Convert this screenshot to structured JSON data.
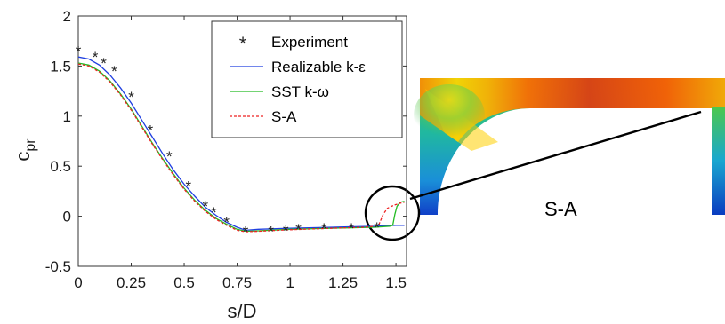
{
  "chart_data": {
    "type": "line",
    "title": "",
    "xlabel": "s/D",
    "ylabel": {
      "main": "c",
      "sub": "pr"
    },
    "xlim": [
      0,
      1.55
    ],
    "ylim": [
      -0.5,
      2
    ],
    "xticks": [
      {
        "v": 0,
        "label": "0"
      },
      {
        "v": 0.25,
        "label": "0.25"
      },
      {
        "v": 0.5,
        "label": "0.5"
      },
      {
        "v": 0.75,
        "label": "0.75"
      },
      {
        "v": 1,
        "label": "1"
      },
      {
        "v": 1.25,
        "label": "1.25"
      },
      {
        "v": 1.5,
        "label": "1.5"
      }
    ],
    "yticks": [
      {
        "v": -0.5,
        "label": "-0.5"
      },
      {
        "v": 0,
        "label": "0"
      },
      {
        "v": 0.5,
        "label": "0.5"
      },
      {
        "v": 1,
        "label": "1"
      },
      {
        "v": 1.5,
        "label": "1.5"
      },
      {
        "v": 2,
        "label": "2"
      }
    ],
    "grid": false,
    "legend_position": "top-right",
    "experiment": {
      "name": "Experiment",
      "marker": "*",
      "color": "#222222",
      "points": [
        [
          0.0,
          1.66
        ],
        [
          0.08,
          1.6
        ],
        [
          0.12,
          1.54
        ],
        [
          0.17,
          1.46
        ],
        [
          0.25,
          1.2
        ],
        [
          0.34,
          0.87
        ],
        [
          0.43,
          0.61
        ],
        [
          0.52,
          0.31
        ],
        [
          0.6,
          0.11
        ],
        [
          0.64,
          0.05
        ],
        [
          0.7,
          -0.05
        ],
        [
          0.79,
          -0.14
        ],
        [
          0.91,
          -0.14
        ],
        [
          0.98,
          -0.13
        ],
        [
          1.04,
          -0.12
        ],
        [
          1.16,
          -0.11
        ],
        [
          1.29,
          -0.11
        ],
        [
          1.41,
          -0.1
        ]
      ]
    },
    "series": [
      {
        "name": "Realizable k-ε",
        "color": "#1f3fe0",
        "style": "solid",
        "points": [
          [
            0,
            1.59
          ],
          [
            0.05,
            1.57
          ],
          [
            0.1,
            1.51
          ],
          [
            0.15,
            1.41
          ],
          [
            0.2,
            1.28
          ],
          [
            0.25,
            1.13
          ],
          [
            0.3,
            0.96
          ],
          [
            0.35,
            0.79
          ],
          [
            0.4,
            0.62
          ],
          [
            0.45,
            0.46
          ],
          [
            0.5,
            0.32
          ],
          [
            0.55,
            0.2
          ],
          [
            0.6,
            0.09
          ],
          [
            0.65,
            0.01
          ],
          [
            0.7,
            -0.06
          ],
          [
            0.75,
            -0.11
          ],
          [
            0.79,
            -0.14
          ],
          [
            0.85,
            -0.13
          ],
          [
            1.0,
            -0.12
          ],
          [
            1.2,
            -0.11
          ],
          [
            1.4,
            -0.1
          ],
          [
            1.5,
            -0.09
          ],
          [
            1.54,
            -0.09
          ]
        ]
      },
      {
        "name": "SST k-ω",
        "color": "#22bb22",
        "style": "solid",
        "points": [
          [
            0,
            1.53
          ],
          [
            0.05,
            1.51
          ],
          [
            0.1,
            1.45
          ],
          [
            0.15,
            1.35
          ],
          [
            0.2,
            1.22
          ],
          [
            0.25,
            1.07
          ],
          [
            0.3,
            0.9
          ],
          [
            0.35,
            0.73
          ],
          [
            0.4,
            0.57
          ],
          [
            0.45,
            0.42
          ],
          [
            0.5,
            0.28
          ],
          [
            0.55,
            0.16
          ],
          [
            0.6,
            0.06
          ],
          [
            0.65,
            -0.02
          ],
          [
            0.7,
            -0.08
          ],
          [
            0.75,
            -0.13
          ],
          [
            0.79,
            -0.15
          ],
          [
            0.85,
            -0.145
          ],
          [
            1.0,
            -0.13
          ],
          [
            1.2,
            -0.12
          ],
          [
            1.4,
            -0.11
          ],
          [
            1.47,
            -0.1
          ],
          [
            1.485,
            -0.09
          ],
          [
            1.495,
            0.02
          ],
          [
            1.505,
            0.1
          ],
          [
            1.52,
            0.14
          ],
          [
            1.54,
            0.15
          ]
        ]
      },
      {
        "name": "S-A",
        "color": "#ee2222",
        "style": "dashed",
        "points": [
          [
            0,
            1.52
          ],
          [
            0.05,
            1.5
          ],
          [
            0.1,
            1.44
          ],
          [
            0.15,
            1.34
          ],
          [
            0.2,
            1.21
          ],
          [
            0.25,
            1.06
          ],
          [
            0.3,
            0.89
          ],
          [
            0.35,
            0.72
          ],
          [
            0.4,
            0.56
          ],
          [
            0.45,
            0.41
          ],
          [
            0.5,
            0.27
          ],
          [
            0.55,
            0.15
          ],
          [
            0.6,
            0.05
          ],
          [
            0.65,
            -0.03
          ],
          [
            0.7,
            -0.09
          ],
          [
            0.75,
            -0.14
          ],
          [
            0.79,
            -0.155
          ],
          [
            0.85,
            -0.15
          ],
          [
            1.0,
            -0.135
          ],
          [
            1.2,
            -0.12
          ],
          [
            1.35,
            -0.11
          ],
          [
            1.4,
            -0.1
          ],
          [
            1.42,
            -0.08
          ],
          [
            1.44,
            0.02
          ],
          [
            1.46,
            0.08
          ],
          [
            1.49,
            0.11
          ],
          [
            1.52,
            0.13
          ],
          [
            1.54,
            0.14
          ]
        ]
      }
    ],
    "contour_label": "S-A"
  }
}
